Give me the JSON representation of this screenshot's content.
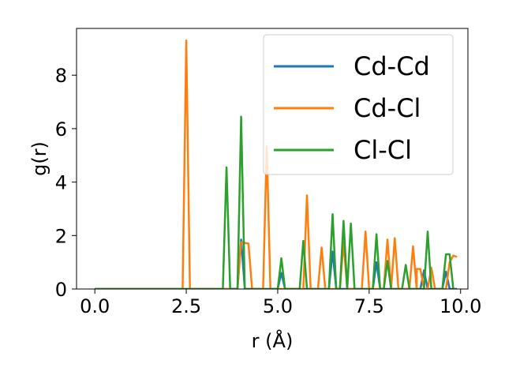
{
  "chart_data": {
    "type": "line",
    "title": "",
    "xlabel": "r (Å)",
    "ylabel": "g(r)",
    "xlim": [
      -0.5,
      10.2
    ],
    "ylim": [
      0,
      9.75
    ],
    "xticks": [
      0.0,
      2.5,
      5.0,
      7.5,
      10.0
    ],
    "xtick_labels": [
      "0.0",
      "2.5",
      "5.0",
      "7.5",
      "10.0"
    ],
    "yticks": [
      0,
      2,
      4,
      6,
      8
    ],
    "ytick_labels": [
      "0",
      "2",
      "4",
      "6",
      "8"
    ],
    "grid": false,
    "legend_position": "upper-right",
    "series": [
      {
        "name": "Cd-Cd",
        "color": "#1f77b4",
        "points": [
          [
            0.0,
            0
          ],
          [
            3.9,
            0
          ],
          [
            4.0,
            1.85
          ],
          [
            4.1,
            0
          ],
          [
            5.0,
            0
          ],
          [
            5.1,
            0.6
          ],
          [
            5.2,
            0
          ],
          [
            6.4,
            0
          ],
          [
            6.5,
            1.4
          ],
          [
            6.6,
            0
          ],
          [
            7.6,
            0
          ],
          [
            7.7,
            1.0
          ],
          [
            7.8,
            0
          ],
          [
            8.9,
            0
          ],
          [
            9.0,
            0.7
          ],
          [
            9.1,
            0
          ],
          [
            9.5,
            0
          ],
          [
            9.6,
            0.65
          ],
          [
            9.7,
            0
          ],
          [
            9.9,
            0
          ]
        ]
      },
      {
        "name": "Cd-Cl",
        "color": "#ff7f0e",
        "points": [
          [
            0.0,
            0
          ],
          [
            2.4,
            0
          ],
          [
            2.5,
            9.3
          ],
          [
            2.6,
            0
          ],
          [
            3.9,
            0
          ],
          [
            4.0,
            1.75
          ],
          [
            4.2,
            1.7
          ],
          [
            4.3,
            0
          ],
          [
            4.6,
            0
          ],
          [
            4.7,
            5.35
          ],
          [
            4.8,
            0
          ],
          [
            5.7,
            0
          ],
          [
            5.8,
            3.5
          ],
          [
            5.9,
            0
          ],
          [
            6.1,
            0
          ],
          [
            6.2,
            1.55
          ],
          [
            6.3,
            0
          ],
          [
            6.7,
            0
          ],
          [
            6.8,
            1.75
          ],
          [
            6.9,
            0
          ],
          [
            7.3,
            0
          ],
          [
            7.4,
            2.15
          ],
          [
            7.5,
            0
          ],
          [
            7.9,
            0
          ],
          [
            8.0,
            1.85
          ],
          [
            8.1,
            0
          ],
          [
            8.2,
            1.9
          ],
          [
            8.3,
            0
          ],
          [
            8.6,
            0
          ],
          [
            8.7,
            1.6
          ],
          [
            8.8,
            0
          ],
          [
            8.8,
            0.75
          ],
          [
            8.9,
            0.75
          ],
          [
            9.0,
            0
          ],
          [
            9.1,
            0
          ],
          [
            9.2,
            0.8
          ],
          [
            9.3,
            0
          ],
          [
            9.6,
            0
          ],
          [
            9.7,
            1.0
          ],
          [
            9.8,
            1.25
          ],
          [
            9.9,
            1.2
          ]
        ]
      },
      {
        "name": "Cl-Cl",
        "color": "#2ca02c",
        "points": [
          [
            0.0,
            0
          ],
          [
            3.5,
            0
          ],
          [
            3.6,
            4.55
          ],
          [
            3.7,
            0
          ],
          [
            3.9,
            0
          ],
          [
            4.0,
            6.45
          ],
          [
            4.1,
            0
          ],
          [
            5.0,
            0
          ],
          [
            5.1,
            1.15
          ],
          [
            5.2,
            0
          ],
          [
            5.6,
            0
          ],
          [
            5.7,
            1.8
          ],
          [
            5.8,
            0
          ],
          [
            6.4,
            0
          ],
          [
            6.5,
            2.8
          ],
          [
            6.6,
            0
          ],
          [
            6.7,
            0
          ],
          [
            6.8,
            2.55
          ],
          [
            6.9,
            0
          ],
          [
            7.0,
            2.45
          ],
          [
            7.1,
            0
          ],
          [
            7.6,
            0
          ],
          [
            7.7,
            2.05
          ],
          [
            7.8,
            0
          ],
          [
            7.9,
            0
          ],
          [
            8.0,
            1.05
          ],
          [
            8.1,
            0
          ],
          [
            8.4,
            0
          ],
          [
            8.5,
            0.9
          ],
          [
            8.6,
            0
          ],
          [
            9.0,
            0
          ],
          [
            9.1,
            2.15
          ],
          [
            9.2,
            0
          ],
          [
            9.5,
            0
          ],
          [
            9.6,
            1.3
          ],
          [
            9.7,
            1.3
          ],
          [
            9.8,
            0
          ]
        ]
      }
    ]
  }
}
